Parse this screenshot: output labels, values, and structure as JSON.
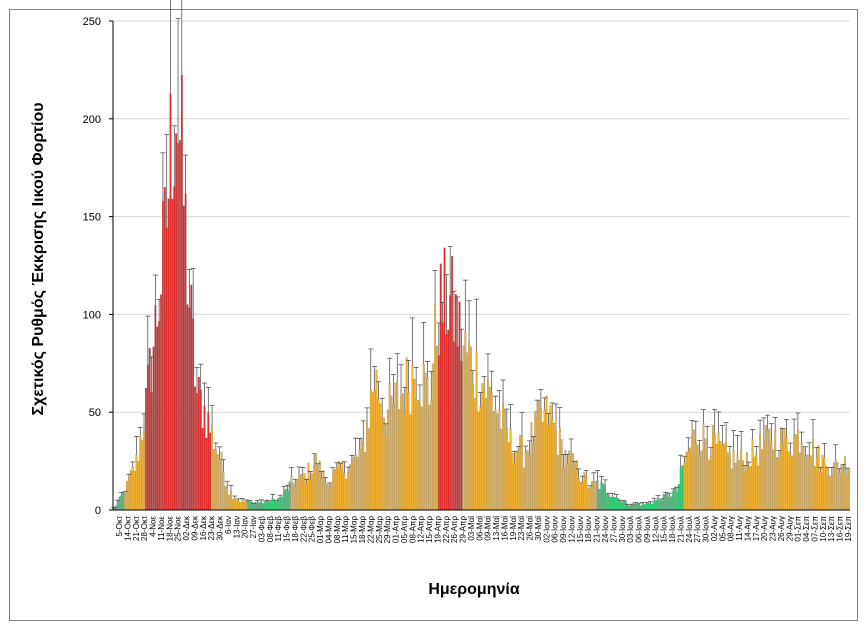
{
  "chart_data": {
    "type": "bar",
    "title": "",
    "xlabel": "Ημερομηνία",
    "ylabel": "Σχετικός Ρυθμός Έκκρισης Ιικού Φορτίου",
    "ylim": [
      0,
      250
    ],
    "yticks": [
      0,
      50,
      100,
      150,
      200,
      250
    ],
    "grid": true,
    "colors": {
      "high": "#e02b2b",
      "medium": "#f2b233",
      "low": "#2ecc71",
      "error": "#404040",
      "grid": "#d9d9d9"
    },
    "xtick_labels": [
      "5-Οκτ",
      "14-Οκτ",
      "21-Οκτ",
      "28-Οκτ",
      "4-Νοε",
      "11-Νοε",
      "18-Νοε",
      "25-Νοε",
      "02-Δεκ",
      "09-Δεκ",
      "16-Δεκ",
      "23-Δεκ",
      "30-Δεκ",
      "6-Ιαν",
      "13-Ιαν",
      "20-Ιαν",
      "27-Ιαν",
      "03-Φεβ",
      "08-Φεβ",
      "11-Φεβ",
      "15-Φεβ",
      "18-Φεβ",
      "22-Φεβ",
      "25-Φεβ",
      "01-Μαρ",
      "04-Μαρ",
      "08-Μαρ",
      "11-Μαρ",
      "15-Μαρ",
      "18-Μαρ",
      "22-Μαρ",
      "25-Μαρ",
      "29-Μαρ",
      "01-Απρ",
      "05-Απρ",
      "08-Απρ",
      "12-Απρ",
      "15-Απρ",
      "19-Απρ",
      "22-Απρ",
      "26-Απρ",
      "29-Απρ",
      "03-Μαϊ",
      "06-Μαϊ",
      "09-Μαϊ",
      "13-Μαϊ",
      "16-Μαϊ",
      "19-Μαϊ",
      "23-Μαϊ",
      "26-Μαϊ",
      "30-Μαϊ",
      "02-Ιουν",
      "06-Ιουν",
      "09-Ιουν",
      "12-Ιουν",
      "15-Ιουν",
      "18-Ιουν",
      "21-Ιουν",
      "24-Ιουν",
      "27-Ιουν",
      "30-Ιουν",
      "03-Ιουλ",
      "06-Ιουλ",
      "09-Ιουλ",
      "12-Ιουλ",
      "15-Ιουλ",
      "18-Ιουλ",
      "21-Ιουλ",
      "24-Ιουλ",
      "27-Ιουλ",
      "30-Ιουλ",
      "02-Αυγ",
      "05-Αυγ",
      "08-Αυγ",
      "11-Αυγ",
      "14-Αυγ",
      "17-Αυγ",
      "20-Αυγ",
      "23-Αυγ",
      "26-Αυγ",
      "29-Αυγ",
      "01-Σεπ",
      "04-Σεπ",
      "07-Σεπ",
      "10-Σεπ",
      "13-Σεπ",
      "16-Σεπ",
      "19-Σεπ"
    ],
    "profile_keys": [
      {
        "i": 0,
        "v": 1,
        "c": "low"
      },
      {
        "i": 6,
        "v": 10,
        "c": "medium"
      },
      {
        "i": 12,
        "v": 25,
        "c": "medium"
      },
      {
        "i": 17,
        "v": 55,
        "c": "high"
      },
      {
        "i": 22,
        "v": 95,
        "c": "high"
      },
      {
        "i": 27,
        "v": 140,
        "c": "high"
      },
      {
        "i": 31,
        "v": 200,
        "c": "high"
      },
      {
        "i": 33,
        "v": 220,
        "c": "high"
      },
      {
        "i": 36,
        "v": 180,
        "c": "high"
      },
      {
        "i": 40,
        "v": 110,
        "c": "high"
      },
      {
        "i": 44,
        "v": 60,
        "c": "high"
      },
      {
        "i": 47,
        "v": 55,
        "c": "high"
      },
      {
        "i": 52,
        "v": 40,
        "c": "medium"
      },
      {
        "i": 56,
        "v": 28,
        "c": "medium"
      },
      {
        "i": 61,
        "v": 10,
        "c": "medium"
      },
      {
        "i": 66,
        "v": 5,
        "c": "medium"
      },
      {
        "i": 71,
        "v": 4,
        "c": "low"
      },
      {
        "i": 80,
        "v": 4,
        "c": "low"
      },
      {
        "i": 88,
        "v": 6,
        "c": "low"
      },
      {
        "i": 94,
        "v": 14,
        "c": "medium"
      },
      {
        "i": 100,
        "v": 16,
        "c": "medium"
      },
      {
        "i": 107,
        "v": 25,
        "c": "medium"
      },
      {
        "i": 113,
        "v": 14,
        "c": "medium"
      },
      {
        "i": 119,
        "v": 20,
        "c": "medium"
      },
      {
        "i": 126,
        "v": 24,
        "c": "medium"
      },
      {
        "i": 132,
        "v": 32,
        "c": "medium"
      },
      {
        "i": 138,
        "v": 70,
        "c": "medium"
      },
      {
        "i": 144,
        "v": 50,
        "c": "medium"
      },
      {
        "i": 152,
        "v": 60,
        "c": "medium"
      },
      {
        "i": 160,
        "v": 75,
        "c": "medium"
      },
      {
        "i": 167,
        "v": 60,
        "c": "medium"
      },
      {
        "i": 172,
        "v": 105,
        "c": "high"
      },
      {
        "i": 177,
        "v": 110,
        "c": "high"
      },
      {
        "i": 181,
        "v": 100,
        "c": "high"
      },
      {
        "i": 185,
        "v": 85,
        "c": "medium"
      },
      {
        "i": 193,
        "v": 70,
        "c": "medium"
      },
      {
        "i": 202,
        "v": 55,
        "c": "medium"
      },
      {
        "i": 210,
        "v": 35,
        "c": "medium"
      },
      {
        "i": 217,
        "v": 30,
        "c": "medium"
      },
      {
        "i": 225,
        "v": 45,
        "c": "medium"
      },
      {
        "i": 230,
        "v": 50,
        "c": "medium"
      },
      {
        "i": 238,
        "v": 30,
        "c": "medium"
      },
      {
        "i": 246,
        "v": 20,
        "c": "medium"
      },
      {
        "i": 252,
        "v": 12,
        "c": "medium"
      },
      {
        "i": 256,
        "v": 14,
        "c": "low"
      },
      {
        "i": 264,
        "v": 8,
        "c": "low"
      },
      {
        "i": 272,
        "v": 3,
        "c": "low"
      },
      {
        "i": 282,
        "v": 3,
        "c": "low"
      },
      {
        "i": 290,
        "v": 6,
        "c": "low"
      },
      {
        "i": 298,
        "v": 10,
        "c": "low"
      },
      {
        "i": 302,
        "v": 25,
        "c": "medium"
      },
      {
        "i": 308,
        "v": 40,
        "c": "medium"
      },
      {
        "i": 316,
        "v": 36,
        "c": "medium"
      },
      {
        "i": 324,
        "v": 28,
        "c": "medium"
      },
      {
        "i": 332,
        "v": 26,
        "c": "medium"
      },
      {
        "i": 340,
        "v": 30,
        "c": "medium"
      },
      {
        "i": 348,
        "v": 38,
        "c": "medium"
      },
      {
        "i": 356,
        "v": 35,
        "c": "medium"
      },
      {
        "i": 364,
        "v": 40,
        "c": "medium"
      },
      {
        "i": 372,
        "v": 28,
        "c": "medium"
      },
      {
        "i": 380,
        "v": 22,
        "c": "medium"
      },
      {
        "i": 389,
        "v": 25,
        "c": "medium"
      }
    ],
    "n_bars": 390
  }
}
